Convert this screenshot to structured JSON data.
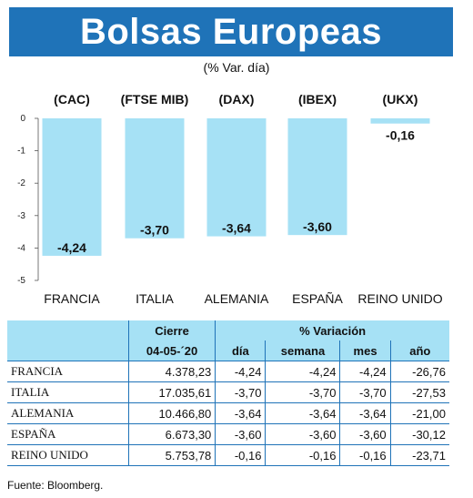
{
  "banner": {
    "title": "Bolsas Europeas"
  },
  "subtitle": "(% Var. día)",
  "chart_data": {
    "type": "bar",
    "categories": [
      "FRANCIA",
      "ITALIA",
      "ALEMANIA",
      "ESPAÑA",
      "REINO UNIDO"
    ],
    "codes": [
      "(CAC)",
      "(FTSE MIB)",
      "(DAX)",
      "(IBEX)",
      "(UKX)"
    ],
    "values": [
      -4.24,
      -3.7,
      -3.64,
      -3.6,
      -0.16
    ],
    "value_labels": [
      "-4,24",
      "-3,70",
      "-3,64",
      "-3,60",
      "-0,16"
    ],
    "yticks": [
      "0",
      "-1",
      "-2",
      "-3",
      "-4",
      "-5"
    ],
    "ylim": [
      -5,
      0
    ],
    "bar_color": "#a6e1f5"
  },
  "table": {
    "header": {
      "cierre": "Cierre",
      "variacion": "% Variación",
      "date": "04-05-´20",
      "dia": "día",
      "semana": "semana",
      "mes": "mes",
      "ano": "año"
    },
    "rows": [
      {
        "name": "FRANCIA",
        "cierre": "4.378,23",
        "dia": "-4,24",
        "semana": "-4,24",
        "mes": "-4,24",
        "ano": "-26,76"
      },
      {
        "name": "ITALIA",
        "cierre": "17.035,61",
        "dia": "-3,70",
        "semana": "-3,70",
        "mes": "-3,70",
        "ano": "-27,53"
      },
      {
        "name": "ALEMANIA",
        "cierre": "10.466,80",
        "dia": "-3,64",
        "semana": "-3,64",
        "mes": "-3,64",
        "ano": "-21,00"
      },
      {
        "name": "ESPAÑA",
        "cierre": "6.673,30",
        "dia": "-3,60",
        "semana": "-3,60",
        "mes": "-3,60",
        "ano": "-30,12"
      },
      {
        "name": "REINO UNIDO",
        "cierre": "5.753,78",
        "dia": "-0,16",
        "semana": "-0,16",
        "mes": "-0,16",
        "ano": "-23,71"
      }
    ]
  },
  "source": "Fuente: Bloomberg.",
  "colors": {
    "banner": "#1f73b8",
    "accent_light": "#a6e1f5",
    "rule": "#1f73b8"
  }
}
